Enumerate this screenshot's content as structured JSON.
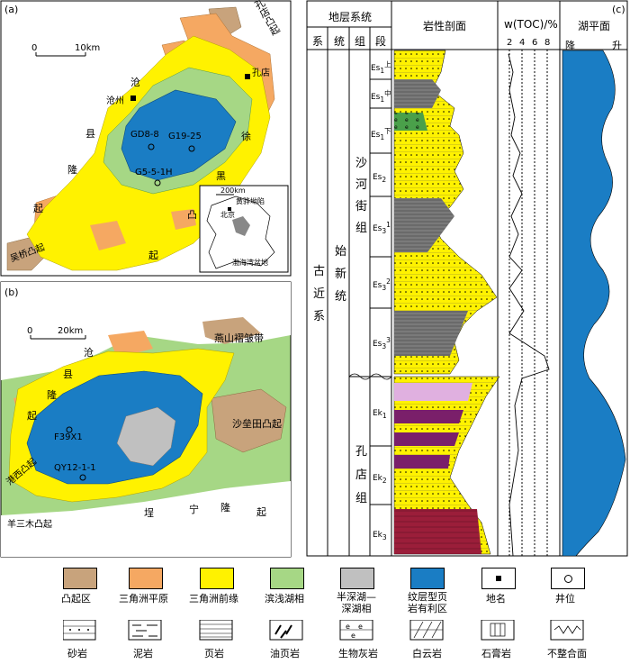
{
  "panel_a": {
    "label": "(a)",
    "scale": {
      "start": "0",
      "end": "10km"
    },
    "top_right_label": "孔店凸起",
    "left_rise_chars": [
      "沧",
      "县",
      "隆",
      "起"
    ],
    "right_rise_chars": [
      "徐",
      "黑",
      "凸",
      "起"
    ],
    "places": [
      {
        "name": "沧州"
      },
      {
        "name": "孔店"
      }
    ],
    "wells": [
      "GD8-8",
      "G19-25",
      "G5-5-1H"
    ],
    "bottom_left_label": "吴桥凸起",
    "inset": {
      "scale": "200km",
      "region": "黄骅坳陷",
      "city": "北京",
      "basin": "渤海湾盆地"
    }
  },
  "panel_b": {
    "label": "(b)",
    "scale": {
      "start": "0",
      "end": "20km"
    },
    "top_right_label": "燕山褶皱带",
    "left_rise_chars": [
      "沧",
      "县",
      "隆",
      "起"
    ],
    "right_rise": "沙垒田凸起",
    "left_small_rise": "港西凸起",
    "bottom_left_label": "羊三木凸起",
    "bottom_rise_chars": [
      "埕",
      "宁",
      "隆",
      "起"
    ],
    "wells": [
      "F39X1",
      "QY12-1-1"
    ]
  },
  "panel_c": {
    "label": "(c)",
    "header": {
      "strat_system": "地层系统",
      "columns": [
        "系",
        "统",
        "组",
        "段"
      ],
      "lithology": "岩性剖面",
      "toc": "w(TOC)/%",
      "lake_level": "湖平面"
    },
    "toc_ticks": [
      "2",
      "4",
      "6",
      "8"
    ],
    "lake_ticks": {
      "low": "降",
      "high": "升"
    },
    "system": [
      "古",
      "近",
      "系"
    ],
    "series": [
      "始",
      "新",
      "统"
    ],
    "formations": [
      {
        "name_chars": [
          "沙",
          "河",
          "街",
          "组"
        ]
      },
      {
        "name_chars": [
          "孔",
          "店",
          "组"
        ]
      }
    ],
    "members": [
      {
        "base": "Es",
        "sub": "1",
        "sup": "上"
      },
      {
        "base": "Es",
        "sub": "1",
        "sup": "中"
      },
      {
        "base": "Es",
        "sub": "1",
        "sup": "下"
      },
      {
        "base": "Es",
        "sub": "2",
        "sup": ""
      },
      {
        "base": "Es",
        "sub": "3",
        "sup": "1"
      },
      {
        "base": "Es",
        "sub": "3",
        "sup": "2"
      },
      {
        "base": "Es",
        "sub": "3",
        "sup": "3"
      },
      {
        "base": "Ek",
        "sub": "1",
        "sup": ""
      },
      {
        "base": "Ek",
        "sub": "2",
        "sup": ""
      },
      {
        "base": "Ek",
        "sub": "3",
        "sup": ""
      }
    ]
  },
  "legend": {
    "row1": [
      {
        "label": "凸起区",
        "color": "#c8a37c"
      },
      {
        "label": "三角洲平原",
        "color": "#f5a862"
      },
      {
        "label": "三角洲前缘",
        "color": "#fff200"
      },
      {
        "label": "滨浅湖相",
        "color": "#a6d785"
      },
      {
        "label": "半深湖—深湖相",
        "color": "#c0c0c0"
      },
      {
        "label": "纹层型页岩有利区",
        "color": "#1a7dc4"
      },
      {
        "label": "地名",
        "color": "#000000"
      },
      {
        "label": "井位",
        "color": "#000000"
      }
    ],
    "row2": [
      "砂岩",
      "泥岩",
      "页岩",
      "油页岩",
      "生物灰岩",
      "白云岩",
      "石膏岩",
      "不整合面"
    ]
  }
}
